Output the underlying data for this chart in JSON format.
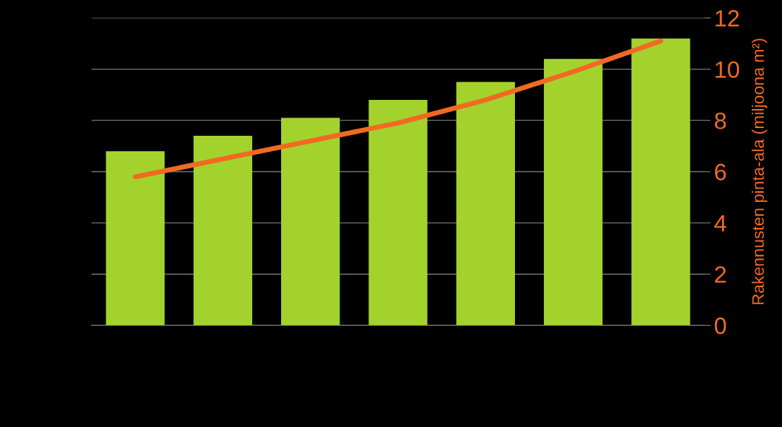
{
  "chart_data": {
    "type": "bar",
    "ylabel": "Rakennusten pinta-ala (miljoona m²)",
    "categories": [
      null,
      null,
      null,
      null,
      null,
      null,
      null
    ],
    "series": [
      {
        "color": "#a4d22d",
        "values": [
          6.8,
          7.4,
          8.1,
          8.8,
          9.5,
          10.4,
          11.2
        ]
      },
      {
        "type": "line",
        "color": "#f26a21",
        "values": [
          5.8,
          6.5,
          7.2,
          7.9,
          8.8,
          9.9,
          11.1
        ]
      }
    ],
    "ylim": [
      0,
      12
    ],
    "yticks": [
      0,
      2,
      4,
      6,
      8,
      10,
      12
    ],
    "grid": "y",
    "line_style": "solid",
    "marker": "none"
  }
}
